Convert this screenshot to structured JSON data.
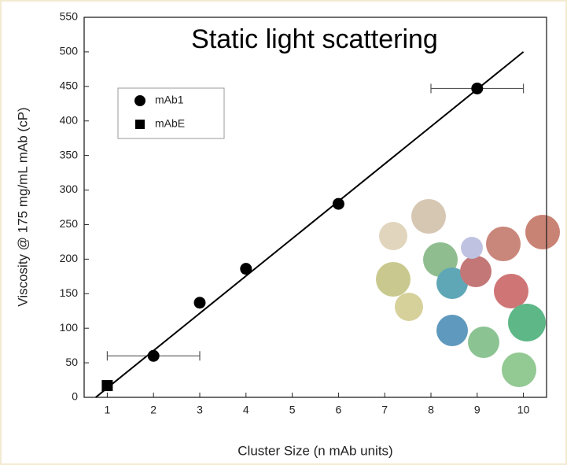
{
  "chart_data": {
    "type": "scatter",
    "title": "Static light scattering",
    "x_label": "Cluster Size (n mAb units)",
    "y_label": "Viscosity @ 175 mg/mL mAb (cP)",
    "xlim": [
      0.5,
      10.5
    ],
    "ylim": [
      0,
      550
    ],
    "xticks": [
      1,
      2,
      3,
      4,
      5,
      6,
      7,
      8,
      9,
      10
    ],
    "yticks": [
      0,
      50,
      100,
      150,
      200,
      250,
      300,
      350,
      400,
      450,
      500,
      550
    ],
    "legend": "upper-left",
    "series": [
      {
        "name": "mAb1",
        "color": "#000000",
        "marker": "circle",
        "x": [
          2,
          3,
          4,
          6,
          9
        ],
        "values": [
          60,
          137,
          186,
          280,
          447
        ],
        "xerr": [
          1,
          null,
          null,
          null,
          1
        ]
      },
      {
        "name": "mAbE",
        "color": "#000000",
        "marker": "square",
        "x": [
          1
        ],
        "values": [
          17
        ]
      }
    ],
    "fit": {
      "color": "#000000",
      "x": [
        0.75,
        10
      ],
      "y": [
        0,
        500
      ]
    }
  }
}
